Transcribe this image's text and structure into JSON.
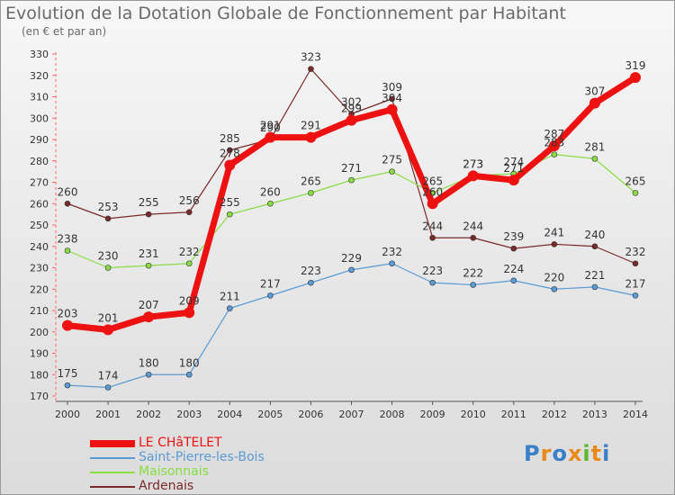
{
  "title": "Evolution de la Dotation Globale de Fonctionnement par Habitant",
  "subtitle": "(en € et par an)",
  "logo": {
    "text": "Proxiti",
    "colors": [
      "#3a7fc8",
      "#e8891a",
      "#3a7fc8",
      "#e8891a",
      "#5cb82e",
      "#e8891a",
      "#3a7fc8"
    ]
  },
  "chart_data": {
    "type": "line",
    "title": "Evolution de la Dotation Globale de Fonctionnement par Habitant",
    "subtitle": "(en € et par an)",
    "x": [
      "2000",
      "2001",
      "2002",
      "2003",
      "2004",
      "2005",
      "2006",
      "2007",
      "2008",
      "2009",
      "2010",
      "2011",
      "2012",
      "2013",
      "2014"
    ],
    "ylim": [
      170,
      330
    ],
    "yticks": [
      170,
      180,
      190,
      200,
      210,
      220,
      230,
      240,
      250,
      260,
      270,
      280,
      290,
      300,
      310,
      320,
      330
    ],
    "grid": false,
    "legend_position": "bottom-left",
    "series": [
      {
        "name": "LE CHâTELET",
        "color": "#ee1111",
        "values": [
          203,
          201,
          207,
          209,
          278,
          291,
          291,
          299,
          304,
          260,
          273,
          271,
          287,
          307,
          319
        ]
      },
      {
        "name": "Saint-Pierre-les-Bois",
        "color": "#5b9bd5",
        "values": [
          175,
          174,
          180,
          180,
          211,
          217,
          223,
          229,
          232,
          223,
          222,
          224,
          220,
          221,
          217
        ]
      },
      {
        "name": "Maisonnais",
        "color": "#88dd44",
        "values": [
          238,
          230,
          231,
          232,
          255,
          260,
          265,
          271,
          275,
          265,
          273,
          274,
          283,
          281,
          265
        ]
      },
      {
        "name": "Ardenais",
        "color": "#7a2a2a",
        "values": [
          260,
          253,
          255,
          256,
          285,
          290,
          323,
          302,
          309,
          244,
          244,
          239,
          241,
          240,
          232
        ]
      }
    ]
  }
}
